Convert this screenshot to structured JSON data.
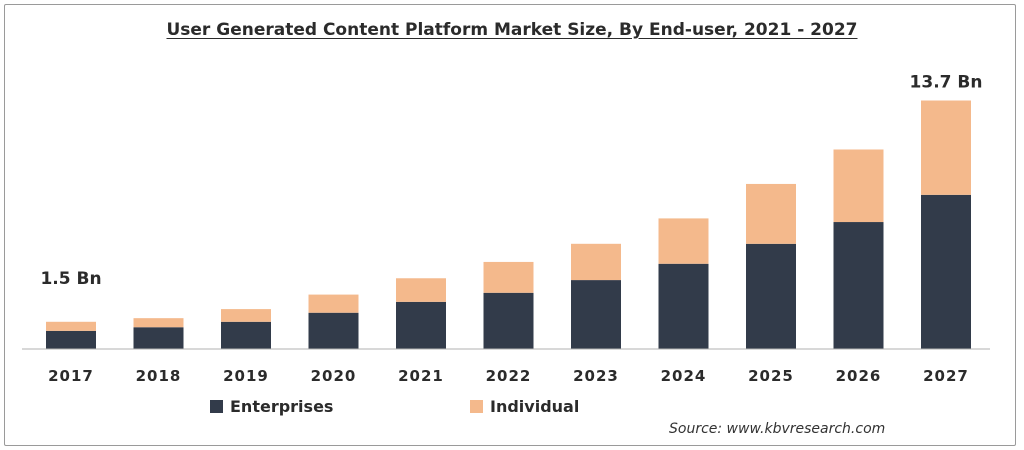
{
  "colors": {
    "enterprises": "#323b4a",
    "individual": "#f4b98c",
    "text": "#2b2b2b",
    "axis": "#b0b0b0"
  },
  "source_text": "Source: www.kbvresearch.com",
  "chart_data": {
    "type": "bar",
    "stacked": true,
    "title": "User Generated Content Platform Market Size, By End-user, 2021 - 2027",
    "categories": [
      "2017",
      "2018",
      "2019",
      "2020",
      "2021",
      "2022",
      "2023",
      "2024",
      "2025",
      "2026",
      "2027"
    ],
    "series": [
      {
        "name": "Enterprises",
        "values": [
          1.0,
          1.2,
          1.5,
          2.0,
          2.6,
          3.1,
          3.8,
          4.7,
          5.8,
          7.0,
          8.5
        ]
      },
      {
        "name": "Individual",
        "values": [
          0.5,
          0.5,
          0.7,
          1.0,
          1.3,
          1.7,
          2.0,
          2.5,
          3.3,
          4.0,
          5.2
        ]
      }
    ],
    "annotations": [
      {
        "category": "2017",
        "text": "1.5 Bn"
      },
      {
        "category": "2027",
        "text": "13.7 Bn"
      }
    ],
    "ylim": [
      0,
      14.5
    ],
    "grid": false,
    "legend_position": "bottom-left"
  }
}
